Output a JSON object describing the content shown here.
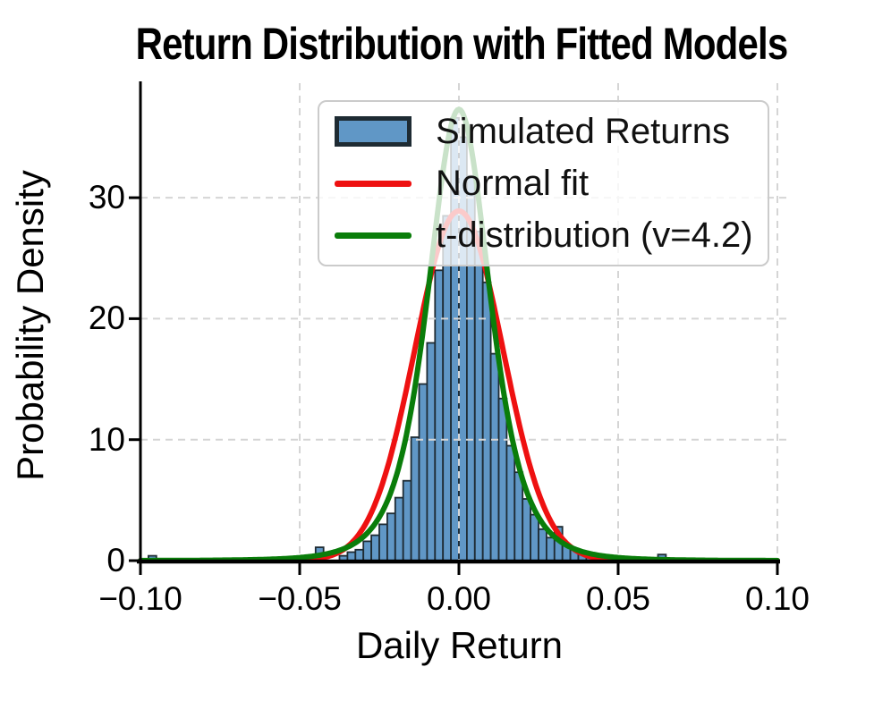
{
  "colors": {
    "histogram_fill": "#6097c6",
    "histogram_edge": "#1e2b33",
    "normal_fit": "#ee1111",
    "t_distribution": "#0a7d0a",
    "grid": "#d5d5d5",
    "axis": "#000000",
    "legend_border": "#cbcbcb",
    "legend_background": "rgba(255,255,255,0.78)",
    "background": "#ffffff"
  },
  "chart_data": {
    "type": "bar",
    "subtype": "histogram_with_fitted_pdf_lines",
    "title": "Return Distribution with Fitted Models",
    "xlabel": "Daily Return",
    "ylabel": "Probability Density",
    "xlim": [
      -0.1,
      0.1035
    ],
    "ylim": [
      0,
      39.5
    ],
    "grid": true,
    "grid_style": "dashed",
    "xticks": [
      -0.1,
      -0.05,
      0.0,
      0.05,
      0.1
    ],
    "xtick_labels": [
      "−0.10",
      "−0.05",
      "0.00",
      "0.05",
      "0.10"
    ],
    "yticks": [
      0,
      10,
      20,
      30
    ],
    "ytick_labels": [
      "0",
      "10",
      "20",
      "30"
    ],
    "series": [
      {
        "name": "Simulated Returns",
        "type": "histogram",
        "bin_width": 0.0025,
        "bins_left_edge_and_density": [
          [
            -0.0975,
            0.4
          ],
          [
            -0.045,
            1.1
          ],
          [
            -0.0375,
            0.4
          ],
          [
            -0.035,
            0.7
          ],
          [
            -0.0325,
            0.9
          ],
          [
            -0.03,
            1.6
          ],
          [
            -0.0275,
            2.1
          ],
          [
            -0.025,
            3.0
          ],
          [
            -0.0225,
            3.9
          ],
          [
            -0.02,
            5.2
          ],
          [
            -0.0175,
            6.6
          ],
          [
            -0.015,
            10.2
          ],
          [
            -0.0125,
            14.6
          ],
          [
            -0.01,
            18.0
          ],
          [
            -0.0075,
            24.0
          ],
          [
            -0.005,
            28.5
          ],
          [
            -0.0025,
            36.6
          ],
          [
            0.0,
            35.0
          ],
          [
            0.0025,
            31.8
          ],
          [
            0.005,
            27.2
          ],
          [
            0.0075,
            23.0
          ],
          [
            0.01,
            17.1
          ],
          [
            0.0125,
            13.4
          ],
          [
            0.015,
            9.5
          ],
          [
            0.0175,
            7.3
          ],
          [
            0.02,
            5.1
          ],
          [
            0.0225,
            3.8
          ],
          [
            0.025,
            2.6
          ],
          [
            0.0275,
            1.9
          ],
          [
            0.03,
            2.8
          ],
          [
            0.0325,
            1.3
          ],
          [
            0.035,
            0.9
          ],
          [
            0.0375,
            0.7
          ],
          [
            0.04,
            0.5
          ],
          [
            0.0425,
            0.4
          ],
          [
            0.045,
            0.3
          ],
          [
            0.0475,
            0.3
          ],
          [
            0.05,
            0.3
          ],
          [
            0.0625,
            0.5
          ]
        ]
      },
      {
        "name": "Normal fit",
        "type": "normal_pdf",
        "mu": 0.0,
        "sigma": 0.0138,
        "peak_density": 28.9
      },
      {
        "name": "t-distribution (v=4.2)",
        "type": "student_t_pdf",
        "nu": 4.2,
        "loc": 0.0,
        "scale": 0.0101,
        "peak_density": 37.3
      }
    ],
    "legend": {
      "location": "upper center",
      "entries": [
        {
          "label": "Simulated Returns",
          "marker": "patch"
        },
        {
          "label": "Normal fit",
          "marker": "line"
        },
        {
          "label": "t-distribution (v=4.2)",
          "marker": "line"
        }
      ]
    }
  }
}
